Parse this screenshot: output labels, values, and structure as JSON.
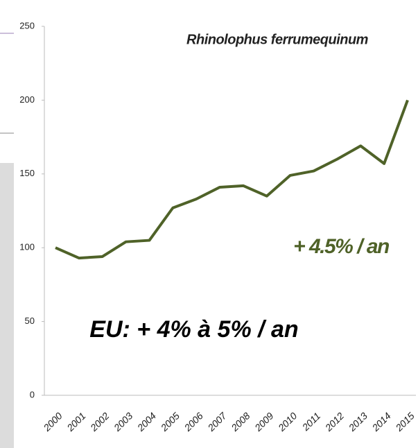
{
  "chart_data": {
    "type": "line",
    "title": "Rhinolophus ferrumequinum",
    "annotations": [
      "+ 4.5% / an",
      "EU: + 4% à 5% / an"
    ],
    "categories": [
      "2000",
      "2001",
      "2002",
      "2003",
      "2004",
      "2005",
      "2006",
      "2007",
      "2008",
      "2009",
      "2010",
      "2011",
      "2012",
      "2013",
      "2014",
      "2015"
    ],
    "series": [
      {
        "name": "Rhinolophus ferrumequinum",
        "color": "#4f6228",
        "values": [
          100,
          93,
          94,
          104,
          105,
          127,
          133,
          141,
          142,
          135,
          149,
          152,
          160,
          169,
          157,
          200
        ]
      }
    ],
    "ylim": [
      0,
      250
    ],
    "yticks": [
      0,
      50,
      100,
      150,
      200,
      250
    ],
    "grid": false
  }
}
